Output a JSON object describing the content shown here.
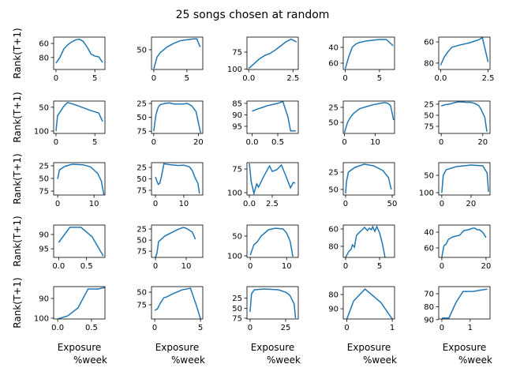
{
  "title": "25 songs chosen at random",
  "chart_data": [
    {
      "type": "line",
      "ylabel": "Rank(T+1)",
      "color": "#1f77b4",
      "x": [
        0,
        0.5,
        1,
        1.5,
        2,
        2.5,
        3,
        3.5,
        4,
        4.5,
        5,
        5.5,
        6
      ],
      "values": [
        88,
        80,
        68,
        62,
        58,
        55,
        54,
        57,
        65,
        75,
        78,
        79,
        87
      ],
      "xlim": [
        -0.3,
        6.3
      ],
      "xticks": [
        0,
        5
      ],
      "ylim": [
        97,
        51
      ],
      "yticks": [
        60,
        80
      ]
    },
    {
      "type": "line",
      "color": "#1f77b4",
      "x": [
        0,
        0.5,
        1,
        2,
        3,
        4,
        5,
        6,
        6.5,
        7
      ],
      "values": [
        71,
        58,
        53,
        47,
        43,
        40,
        39,
        38,
        38,
        47
      ],
      "xlim": [
        -0.35,
        7.4
      ],
      "xticks": [
        0,
        5
      ],
      "ylim": [
        72,
        36
      ],
      "yticks": [
        50
      ]
    },
    {
      "type": "line",
      "color": "#1f77b4",
      "x": [
        0,
        0.3,
        0.6,
        0.9,
        1.2,
        1.5,
        1.8,
        2.1,
        2.4,
        2.7
      ],
      "values": [
        99,
        92,
        85,
        80,
        77,
        72,
        66,
        60,
        56,
        60
      ],
      "xlim": [
        -0.1,
        2.8
      ],
      "xticks": [
        {
          "value": 0,
          "label": "0.0"
        },
        2.5
      ],
      "ylim": [
        100.5,
        53
      ],
      "yticks": [
        75,
        100
      ]
    },
    {
      "type": "line",
      "color": "#1f77b4",
      "x": [
        0,
        0.5,
        1,
        1.5,
        2,
        3,
        4,
        5,
        6,
        7
      ],
      "values": [
        67,
        52,
        40,
        36,
        34,
        32,
        31,
        30,
        30,
        38
      ],
      "xlim": [
        -0.3,
        7.2
      ],
      "xticks": [
        0,
        5
      ],
      "ylim": [
        68,
        27
      ],
      "yticks": [
        40,
        60
      ]
    },
    {
      "type": "line",
      "color": "#1f77b4",
      "x": [
        0,
        0.2,
        0.4,
        0.6,
        1,
        1.5,
        2,
        2.2,
        2.5
      ],
      "values": [
        82,
        74,
        69,
        65,
        63,
        61,
        58,
        56,
        79
      ],
      "xlim": [
        -0.1,
        2.6
      ],
      "xticks": [
        {
          "value": 0,
          "label": "0.0"
        },
        2.5
      ],
      "ylim": [
        86,
        55.5
      ],
      "yticks": [
        60,
        80
      ]
    },
    {
      "type": "line",
      "ylabel": "Rank(T+1)",
      "color": "#1f77b4",
      "x": [
        0,
        0.2,
        0.6,
        1,
        1.5,
        2.5,
        3.5,
        4.5,
        5.5,
        6
      ],
      "values": [
        100,
        68,
        58,
        48,
        40,
        45,
        51,
        57,
        62,
        80
      ],
      "xlim": [
        -0.3,
        6.3
      ],
      "xticks": [
        0,
        5
      ],
      "ylim": [
        105,
        37
      ],
      "yticks": [
        50,
        100
      ]
    },
    {
      "type": "line",
      "color": "#1f77b4",
      "x": [
        0,
        1,
        2,
        3,
        5,
        7,
        9,
        11,
        13,
        15,
        17,
        19,
        21
      ],
      "values": [
        75,
        45,
        32,
        27,
        25,
        24,
        26,
        26,
        26,
        25,
        29,
        40,
        78
      ],
      "xlim": [
        -1,
        22
      ],
      "xticks": [
        0,
        20
      ],
      "ylim": [
        79,
        20.7
      ],
      "yticks": [
        25,
        50,
        75
      ]
    },
    {
      "type": "line",
      "color": "#1f77b4",
      "x": [
        0,
        0.1,
        0.2,
        0.3,
        0.4,
        0.5,
        0.6,
        0.7,
        0.75,
        0.85
      ],
      "values": [
        88.4,
        87.5,
        86.8,
        86,
        85.5,
        85,
        84.2,
        91,
        97,
        97
      ],
      "xlim": [
        -0.1,
        0.9
      ],
      "xticks": [
        {
          "value": 0,
          "label": "0.0"
        },
        0.5
      ],
      "ylim": [
        98.1,
        84
      ],
      "yticks": [
        85,
        90,
        95
      ]
    },
    {
      "type": "line",
      "color": "#1f77b4",
      "x": [
        0,
        1,
        2,
        3,
        5,
        7,
        9,
        11,
        13,
        14,
        15,
        16
      ],
      "values": [
        67,
        50,
        41,
        35,
        27,
        24,
        21,
        19,
        17,
        18,
        22,
        46
      ],
      "xlim": [
        -0.4,
        16.3
      ],
      "xticks": [
        0,
        10
      ],
      "ylim": [
        68.4,
        14.5
      ],
      "yticks": [
        25,
        50
      ]
    },
    {
      "type": "line",
      "color": "#1f77b4",
      "x": [
        0,
        2,
        4,
        6,
        8,
        10,
        12,
        14,
        16,
        18,
        19,
        20,
        21,
        22
      ],
      "values": [
        29,
        26,
        25,
        22,
        20,
        20,
        21,
        21,
        23,
        28,
        35,
        45,
        55,
        87
      ],
      "xlim": [
        -1.2,
        23.5
      ],
      "xticks": [
        0,
        20
      ],
      "ylim": [
        91,
        18
      ],
      "yticks": [
        25,
        50,
        75
      ]
    },
    {
      "type": "line",
      "ylabel": "Rank(T+1)",
      "color": "#1f77b4",
      "x": [
        0,
        0.5,
        2,
        4,
        7,
        9,
        11,
        12,
        12.7
      ],
      "values": [
        51,
        33,
        26,
        22,
        23,
        27,
        40,
        55,
        82
      ],
      "xlim": [
        -1.1,
        13
      ],
      "xticks": [
        0,
        10
      ],
      "ylim": [
        82.8,
        18.8
      ],
      "yticks": [
        25,
        50,
        75
      ]
    },
    {
      "type": "line",
      "color": "#1f77b4",
      "x": [
        0,
        0.5,
        1,
        1.5,
        2,
        3,
        5,
        8,
        10,
        12,
        13,
        14,
        15,
        15.5
      ],
      "values": [
        46,
        55,
        62,
        60,
        48,
        17,
        19,
        21,
        20,
        24,
        32,
        48,
        60,
        82
      ],
      "xlim": [
        -1.4,
        16.7
      ],
      "xticks": [
        0,
        10
      ],
      "ylim": [
        85.3,
        14.7
      ],
      "yticks": [
        25,
        50,
        75
      ]
    },
    {
      "type": "line",
      "color": "#1f77b4",
      "x": [
        0,
        0.2,
        0.5,
        0.8,
        1,
        1.5,
        2.2,
        2.5,
        3,
        3.5,
        4,
        4.5,
        4.8,
        5
      ],
      "values": [
        69.2,
        88.3,
        100.8,
        90.8,
        94.2,
        84.2,
        71.7,
        77.5,
        75.8,
        70.8,
        82.5,
        95,
        89.2,
        90
      ],
      "xlim": [
        -0.26,
        5.35
      ],
      "xticks": [
        {
          "value": 0,
          "label": "0.0"
        },
        2.5
      ],
      "ylim": [
        102.5,
        68.3
      ],
      "yticks": [
        75,
        100
      ]
    },
    {
      "type": "line",
      "color": "#1f77b4",
      "x": [
        0,
        1,
        3,
        10,
        20,
        30,
        40,
        46,
        49
      ],
      "values": [
        55.7,
        38.6,
        25,
        18.2,
        13.6,
        15.9,
        22.7,
        33,
        50
      ],
      "xlim": [
        -2.5,
        52.5
      ],
      "xticks": [
        0,
        50
      ],
      "ylim": [
        58,
        11.4
      ],
      "yticks": [
        25,
        50
      ]
    },
    {
      "type": "line",
      "color": "#1f77b4",
      "x": [
        0,
        1,
        3,
        10,
        20,
        28,
        31,
        32
      ],
      "values": [
        100,
        50,
        34,
        25,
        20.5,
        22.7,
        43,
        97.7
      ],
      "xlim": [
        -2.1,
        33
      ],
      "xticks": [
        0,
        20
      ],
      "ylim": [
        106.8,
        13.6
      ],
      "yticks": [
        50,
        100
      ]
    },
    {
      "type": "line",
      "ylabel": "Rank(T+1)",
      "color": "#1f77b4",
      "x": [
        0,
        0.2,
        0.4,
        0.6,
        0.8
      ],
      "values": [
        92.8,
        87.5,
        87.5,
        90.8,
        97.5
      ],
      "xlim": [
        -0.09,
        0.83
      ],
      "xticks": [
        {
          "value": 0,
          "label": "0.0"
        },
        0.5
      ],
      "ylim": [
        98,
        86.7
      ],
      "yticks": [
        90,
        95
      ]
    },
    {
      "type": "line",
      "color": "#1f77b4",
      "x": [
        0,
        0.5,
        1,
        3,
        7,
        9,
        10,
        12,
        13
      ],
      "values": [
        89,
        78.6,
        53.6,
        41,
        26.8,
        21.4,
        23.2,
        32,
        48.2
      ],
      "xlim": [
        -1.3,
        15.4
      ],
      "xticks": [
        0,
        10
      ],
      "ylim": [
        89,
        16
      ],
      "yticks": [
        25,
        50,
        75
      ]
    },
    {
      "type": "line",
      "color": "#1f77b4",
      "x": [
        0,
        1,
        2,
        3,
        5,
        7,
        9,
        10,
        11,
        11.7
      ],
      "values": [
        98,
        72,
        64,
        50,
        34,
        30,
        32,
        42,
        64,
        102
      ],
      "xlim": [
        -0.9,
        13.2
      ],
      "xticks": [
        0,
        10
      ],
      "ylim": [
        104,
        22
      ],
      "yticks": [
        50,
        100
      ]
    },
    {
      "type": "line",
      "color": "#1f77b4",
      "x": [
        0,
        0.5,
        0.8,
        1,
        1.3,
        1.6,
        2.2,
        2.8,
        3.2,
        3.5,
        3.8,
        4,
        4.3,
        4.6,
        5,
        5.4,
        5.8
      ],
      "values": [
        92.7,
        85.5,
        83.6,
        78.2,
        80.9,
        67.3,
        62.7,
        58.2,
        61.8,
        59.1,
        60.9,
        57.3,
        62.7,
        57.3,
        64.5,
        76.4,
        92.7
      ],
      "xlim": [
        -0.35,
        7.2
      ],
      "xticks": [
        0,
        5
      ],
      "ylim": [
        92.7,
        55.5
      ],
      "yticks": [
        60,
        80
      ]
    },
    {
      "type": "line",
      "color": "#1f77b4",
      "x": [
        0,
        0.5,
        1,
        2,
        3,
        5,
        8,
        10,
        12,
        14,
        15,
        16,
        17,
        18,
        19,
        20
      ],
      "values": [
        72,
        64,
        57,
        55,
        49,
        46,
        44,
        38,
        37,
        35,
        35,
        37,
        37,
        39,
        42,
        47
      ],
      "xlim": [
        -1.4,
        21.8
      ],
      "xticks": [
        0,
        20
      ],
      "ylim": [
        72,
        31
      ],
      "yticks": [
        40,
        60
      ]
    },
    {
      "type": "line",
      "ylabel": "Rank(T+1)",
      "xlabel": [
        "Exposure",
        "%week"
      ],
      "color": "#1f77b4",
      "x": [
        0,
        0.15,
        0.3,
        0.45,
        0.6,
        0.7
      ],
      "values": [
        100.4,
        98.8,
        94.8,
        85.2,
        85.2,
        84.4
      ],
      "xlim": [
        -0.06,
        0.7
      ],
      "xticks": [
        {
          "value": 0,
          "label": "0.0"
        },
        0.5
      ],
      "ylim": [
        100.4,
        84
      ],
      "yticks": [
        90,
        100
      ]
    },
    {
      "type": "line",
      "xlabel": [
        "Exposure",
        "%week"
      ],
      "color": "#1f77b4",
      "x": [
        0,
        0.3,
        0.6,
        1,
        1.3,
        2,
        3,
        3.9,
        4.5,
        5
      ],
      "values": [
        86,
        83,
        72,
        61,
        59.4,
        53,
        45.3,
        42.2,
        73.4,
        103
      ],
      "xlim": [
        -0.35,
        5.25
      ],
      "xticks": [
        0,
        5
      ],
      "ylim": [
        103,
        39
      ],
      "yticks": [
        50,
        75
      ]
    },
    {
      "type": "line",
      "xlabel": [
        "Exposure",
        "%week"
      ],
      "color": "#1f77b4",
      "x": [
        0,
        1,
        3,
        10,
        20,
        25,
        28,
        31,
        32
      ],
      "values": [
        59,
        13.8,
        3.9,
        1.9,
        3.9,
        9.8,
        17.7,
        39.5,
        75
      ],
      "xlim": [
        -2.2,
        33.9
      ],
      "xticks": [
        0,
        25
      ],
      "ylim": [
        77,
        -4
      ],
      "yticks": [
        25,
        50,
        75
      ]
    },
    {
      "type": "line",
      "xlabel": [
        "Exposure",
        "%week"
      ],
      "color": "#1f77b4",
      "x": [
        0,
        0.15,
        0.4,
        0.75,
        1
      ],
      "values": [
        97.2,
        84.4,
        76.1,
        85.6,
        97.2
      ],
      "xlim": [
        -0.08,
        1.05
      ],
      "xticks": [
        0,
        1
      ],
      "ylim": [
        97.2,
        74.4
      ],
      "yticks": [
        80,
        90
      ]
    },
    {
      "type": "line",
      "xlabel": [
        "Exposure",
        "%week"
      ],
      "color": "#1f77b4",
      "x": [
        0,
        0.25,
        0.5,
        0.75,
        1.1,
        1.6
      ],
      "values": [
        88.8,
        88.8,
        76.7,
        68.2,
        68.2,
        66.4
      ],
      "xlim": [
        -0.11,
        1.7
      ],
      "xticks": [
        0,
        1
      ],
      "ylim": [
        89.5,
        64.5
      ],
      "yticks": [
        70,
        80,
        90
      ]
    }
  ]
}
